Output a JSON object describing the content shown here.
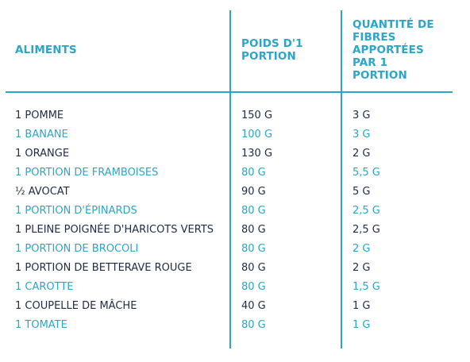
{
  "colors": {
    "accent": "#2aa6c8",
    "text_dark": "#1f2a44"
  },
  "header": {
    "col1": "ALIMENTS",
    "col2": "POIDS D'1\nPORTION",
    "col3": "QUANTITÉ DE\nFIBRES\nAPPORTÉES\nPAR 1\nPORTION"
  },
  "rows": [
    {
      "aliment": "1 POMME",
      "poids": "150 G",
      "fibres": "3 G",
      "style": "dark"
    },
    {
      "aliment": "1 BANANE",
      "poids": "100 G",
      "fibres": "3 G",
      "style": "light"
    },
    {
      "aliment": "1 ORANGE",
      "poids": "130 G",
      "fibres": "2 G",
      "style": "dark"
    },
    {
      "aliment": "1 PORTION DE FRAMBOISES",
      "poids": "80 G",
      "fibres": "5,5 G",
      "style": "light"
    },
    {
      "aliment": "½ AVOCAT",
      "poids": "90 G",
      "fibres": "5 G",
      "style": "dark"
    },
    {
      "aliment": "1 PORTION D'ÉPINARDS",
      "poids": "80 G",
      "fibres": "2,5 G",
      "style": "light"
    },
    {
      "aliment": "1 PLEINE POIGNÉE D'HARICOTS VERTS",
      "poids": "80 G",
      "fibres": "2,5 G",
      "style": "dark"
    },
    {
      "aliment": "1 PORTION DE BROCOLI",
      "poids": "80 G",
      "fibres": "2 G",
      "style": "light"
    },
    {
      "aliment": "1 PORTION DE BETTERAVE ROUGE",
      "poids": "80 G",
      "fibres": "2 G",
      "style": "dark"
    },
    {
      "aliment": "1 CAROTTE",
      "poids": "80 G",
      "fibres": "1,5 G",
      "style": "light"
    },
    {
      "aliment": "1 COUPELLE DE MÂCHE",
      "poids": "40 G",
      "fibres": "1 G",
      "style": "dark"
    },
    {
      "aliment": "1 TOMATE",
      "poids": "80 G",
      "fibres": "1 G",
      "style": "light"
    }
  ]
}
